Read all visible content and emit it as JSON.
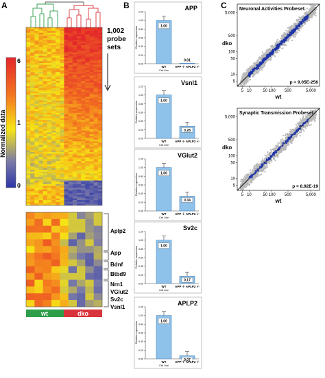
{
  "panels": {
    "a": "A",
    "b": "B",
    "c": "C"
  },
  "heatmap": {
    "probe_sets_line1": "1,002",
    "probe_sets_line2": "probe",
    "probe_sets_line3": "sets",
    "colorbar_label": "Normalized data",
    "colorbar_ticks": [
      "6",
      "1",
      "0"
    ],
    "genes": [
      "Aplp2",
      "App",
      "Bdnf",
      "Btbd9",
      "Nrn1",
      "VGlut2",
      "Sv2c",
      "Vsnl1"
    ],
    "groups": [
      {
        "label": "wt",
        "color": "#2e9e4a"
      },
      {
        "label": "dko",
        "color": "#d9333b"
      }
    ]
  },
  "chart_data": [
    {
      "type": "bar",
      "title": "APP",
      "categories": [
        "WT",
        "APP -/- APLP2 -/-"
      ],
      "cat_sub": "Cell Line",
      "values": [
        1.0,
        0.01
      ],
      "value_labels": [
        "1.00",
        "0.01"
      ],
      "ylabel": "Relative expression",
      "ylim": [
        0,
        1.2
      ],
      "yticks": [
        "0.00",
        "0.20",
        "0.40",
        "0.60",
        "0.80",
        "1.00",
        "1.20"
      ]
    },
    {
      "type": "bar",
      "title": "Vsnl1",
      "categories": [
        "WT",
        "APP -/- APLP2 -/-"
      ],
      "cat_sub": "Cell Line",
      "values": [
        1.0,
        0.28
      ],
      "value_labels": [
        "1.00",
        "0.28"
      ],
      "ylabel": "Relative expression",
      "ylim": [
        0,
        1.2
      ],
      "yticks": [
        "0.00",
        "0.20",
        "0.40",
        "0.60",
        "0.80",
        "1.00",
        "1.20"
      ]
    },
    {
      "type": "bar",
      "title": "VGlut2",
      "categories": [
        "WT",
        "APP -/- APLP2 -/-"
      ],
      "cat_sub": "Cell Line",
      "values": [
        1.0,
        0.34
      ],
      "value_labels": [
        "1.00",
        "0.34"
      ],
      "ylabel": "Relative expression",
      "ylim": [
        0,
        1.2
      ],
      "yticks": [
        "0.00",
        "0.20",
        "0.40",
        "0.60",
        "0.80",
        "1.00",
        "1.20"
      ]
    },
    {
      "type": "bar",
      "title": "Sv2c",
      "categories": [
        "WT",
        "APP -/- APLP2 -/-"
      ],
      "cat_sub": "Cell Line",
      "values": [
        1.0,
        0.17
      ],
      "value_labels": [
        "1.00",
        "0.17"
      ],
      "ylabel": "Relative expression",
      "ylim": [
        0,
        1.2
      ],
      "yticks": [
        "0.00",
        "0.20",
        "0.40",
        "0.60",
        "0.80",
        "1.00",
        "1.20"
      ]
    },
    {
      "type": "bar",
      "title": "APLP2",
      "categories": [
        "WT",
        "APP -/- APLP2 -/-"
      ],
      "cat_sub": "Cell Line",
      "values": [
        1.0,
        0.07
      ],
      "value_labels": [
        "1.00",
        "0.07"
      ],
      "ylabel": "Relative expression",
      "ylim": [
        0,
        1.2
      ],
      "yticks": [
        "0.00",
        "0.20",
        "0.40",
        "0.60",
        "0.80",
        "1.00",
        "1.20"
      ]
    },
    {
      "type": "scatter",
      "title": "Neuronal Activities Probeset",
      "xlabel": "wt",
      "ylabel": "dko",
      "ticks": [
        "5",
        "10",
        "50",
        "100",
        "500",
        "5,000"
      ],
      "scale": "log",
      "annotation": "p = 9.05E-256",
      "background_color": "#b8b8b8",
      "highlight_color": "#1f35a8"
    },
    {
      "type": "scatter",
      "title": "Synaptic Transmission Probeset",
      "xlabel": "wt",
      "ylabel": "dko",
      "ticks": [
        "5",
        "10",
        "50",
        "100",
        "500",
        "5,000"
      ],
      "scale": "log",
      "annotation": "p = 8.92E-19",
      "background_color": "#b8b8b8",
      "highlight_color": "#1f35a8"
    }
  ]
}
